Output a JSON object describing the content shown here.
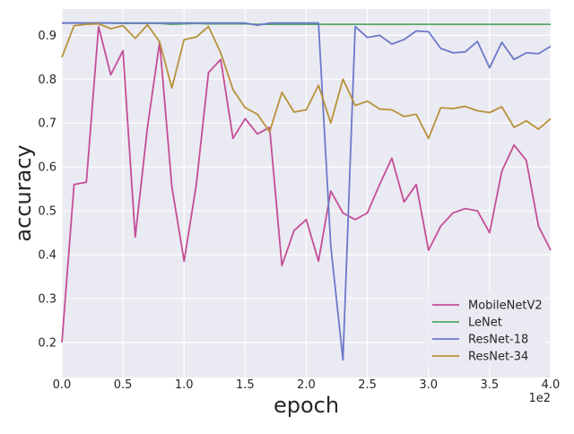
{
  "chart_data": {
    "type": "line",
    "title": "",
    "xlabel": "epoch",
    "ylabel": "accuracy",
    "x_offset_label": "1e2",
    "xlim": [
      0,
      4.0
    ],
    "ylim": [
      0.12,
      0.96
    ],
    "x_ticks": [
      0.0,
      0.5,
      1.0,
      1.5,
      2.0,
      2.5,
      3.0,
      3.5,
      4.0
    ],
    "x_tick_labels": [
      "0.0",
      "0.5",
      "1.0",
      "1.5",
      "2.0",
      "2.5",
      "3.0",
      "3.5",
      "4.0"
    ],
    "y_ticks": [
      0.2,
      0.3,
      0.4,
      0.5,
      0.6,
      0.7,
      0.8,
      0.9
    ],
    "y_tick_labels": [
      "0.2",
      "0.3",
      "0.4",
      "0.5",
      "0.6",
      "0.7",
      "0.8",
      "0.9"
    ],
    "grid": true,
    "legend_position": "lower-right",
    "x": [
      0.0,
      0.1,
      0.2,
      0.3,
      0.4,
      0.5,
      0.6,
      0.7,
      0.8,
      0.9,
      1.0,
      1.1,
      1.2,
      1.3,
      1.4,
      1.5,
      1.6,
      1.7,
      1.8,
      1.9,
      2.0,
      2.1,
      2.2,
      2.3,
      2.4,
      2.5,
      2.6,
      2.7,
      2.8,
      2.9,
      3.0,
      3.1,
      3.2,
      3.3,
      3.4,
      3.5,
      3.6,
      3.7,
      3.8,
      3.9,
      4.0
    ],
    "series": [
      {
        "name": "MobileNetV2",
        "color": "#c44e97",
        "values": [
          0.2,
          0.56,
          0.565,
          0.92,
          0.81,
          0.865,
          0.44,
          0.69,
          0.885,
          0.555,
          0.385,
          0.56,
          0.815,
          0.845,
          0.665,
          0.71,
          0.675,
          0.69,
          0.375,
          0.455,
          0.48,
          0.385,
          0.545,
          0.495,
          0.48,
          0.495,
          0.56,
          0.62,
          0.52,
          0.56,
          0.41,
          0.465,
          0.495,
          0.505,
          0.5,
          0.45,
          0.59,
          0.65,
          0.615,
          0.465,
          0.41
        ]
      },
      {
        "name": "LeNet",
        "color": "#55a868",
        "values": [
          0.928,
          0.928,
          0.928,
          0.928,
          0.928,
          0.927,
          0.927,
          0.927,
          0.927,
          0.925,
          0.926,
          0.927,
          0.926,
          0.926,
          0.926,
          0.926,
          0.925,
          0.925,
          0.925,
          0.925,
          0.925,
          0.925,
          0.925,
          0.925,
          0.925,
          0.925,
          0.925,
          0.925,
          0.925,
          0.925,
          0.925,
          0.925,
          0.925,
          0.925,
          0.925,
          0.925,
          0.925,
          0.925,
          0.925,
          0.925,
          0.925
        ]
      },
      {
        "name": "ResNet-18",
        "color": "#6c78c8",
        "values": [
          0.928,
          0.928,
          0.928,
          0.928,
          0.928,
          0.928,
          0.928,
          0.928,
          0.928,
          0.928,
          0.928,
          0.928,
          0.928,
          0.928,
          0.928,
          0.928,
          0.923,
          0.928,
          0.928,
          0.928,
          0.928,
          0.928,
          0.42,
          0.16,
          0.92,
          0.895,
          0.9,
          0.88,
          0.89,
          0.91,
          0.908,
          0.87,
          0.86,
          0.862,
          0.886,
          0.826,
          0.884,
          0.845,
          0.86,
          0.858,
          0.875
        ]
      },
      {
        "name": "ResNet-34",
        "color": "#b8913a",
        "values": [
          0.85,
          0.922,
          0.925,
          0.926,
          0.915,
          0.922,
          0.893,
          0.924,
          0.885,
          0.78,
          0.89,
          0.896,
          0.92,
          0.86,
          0.776,
          0.735,
          0.72,
          0.68,
          0.77,
          0.725,
          0.73,
          0.786,
          0.7,
          0.8,
          0.74,
          0.75,
          0.732,
          0.73,
          0.715,
          0.72,
          0.665,
          0.735,
          0.733,
          0.738,
          0.728,
          0.724,
          0.737,
          0.69,
          0.705,
          0.686,
          0.71
        ]
      }
    ]
  }
}
